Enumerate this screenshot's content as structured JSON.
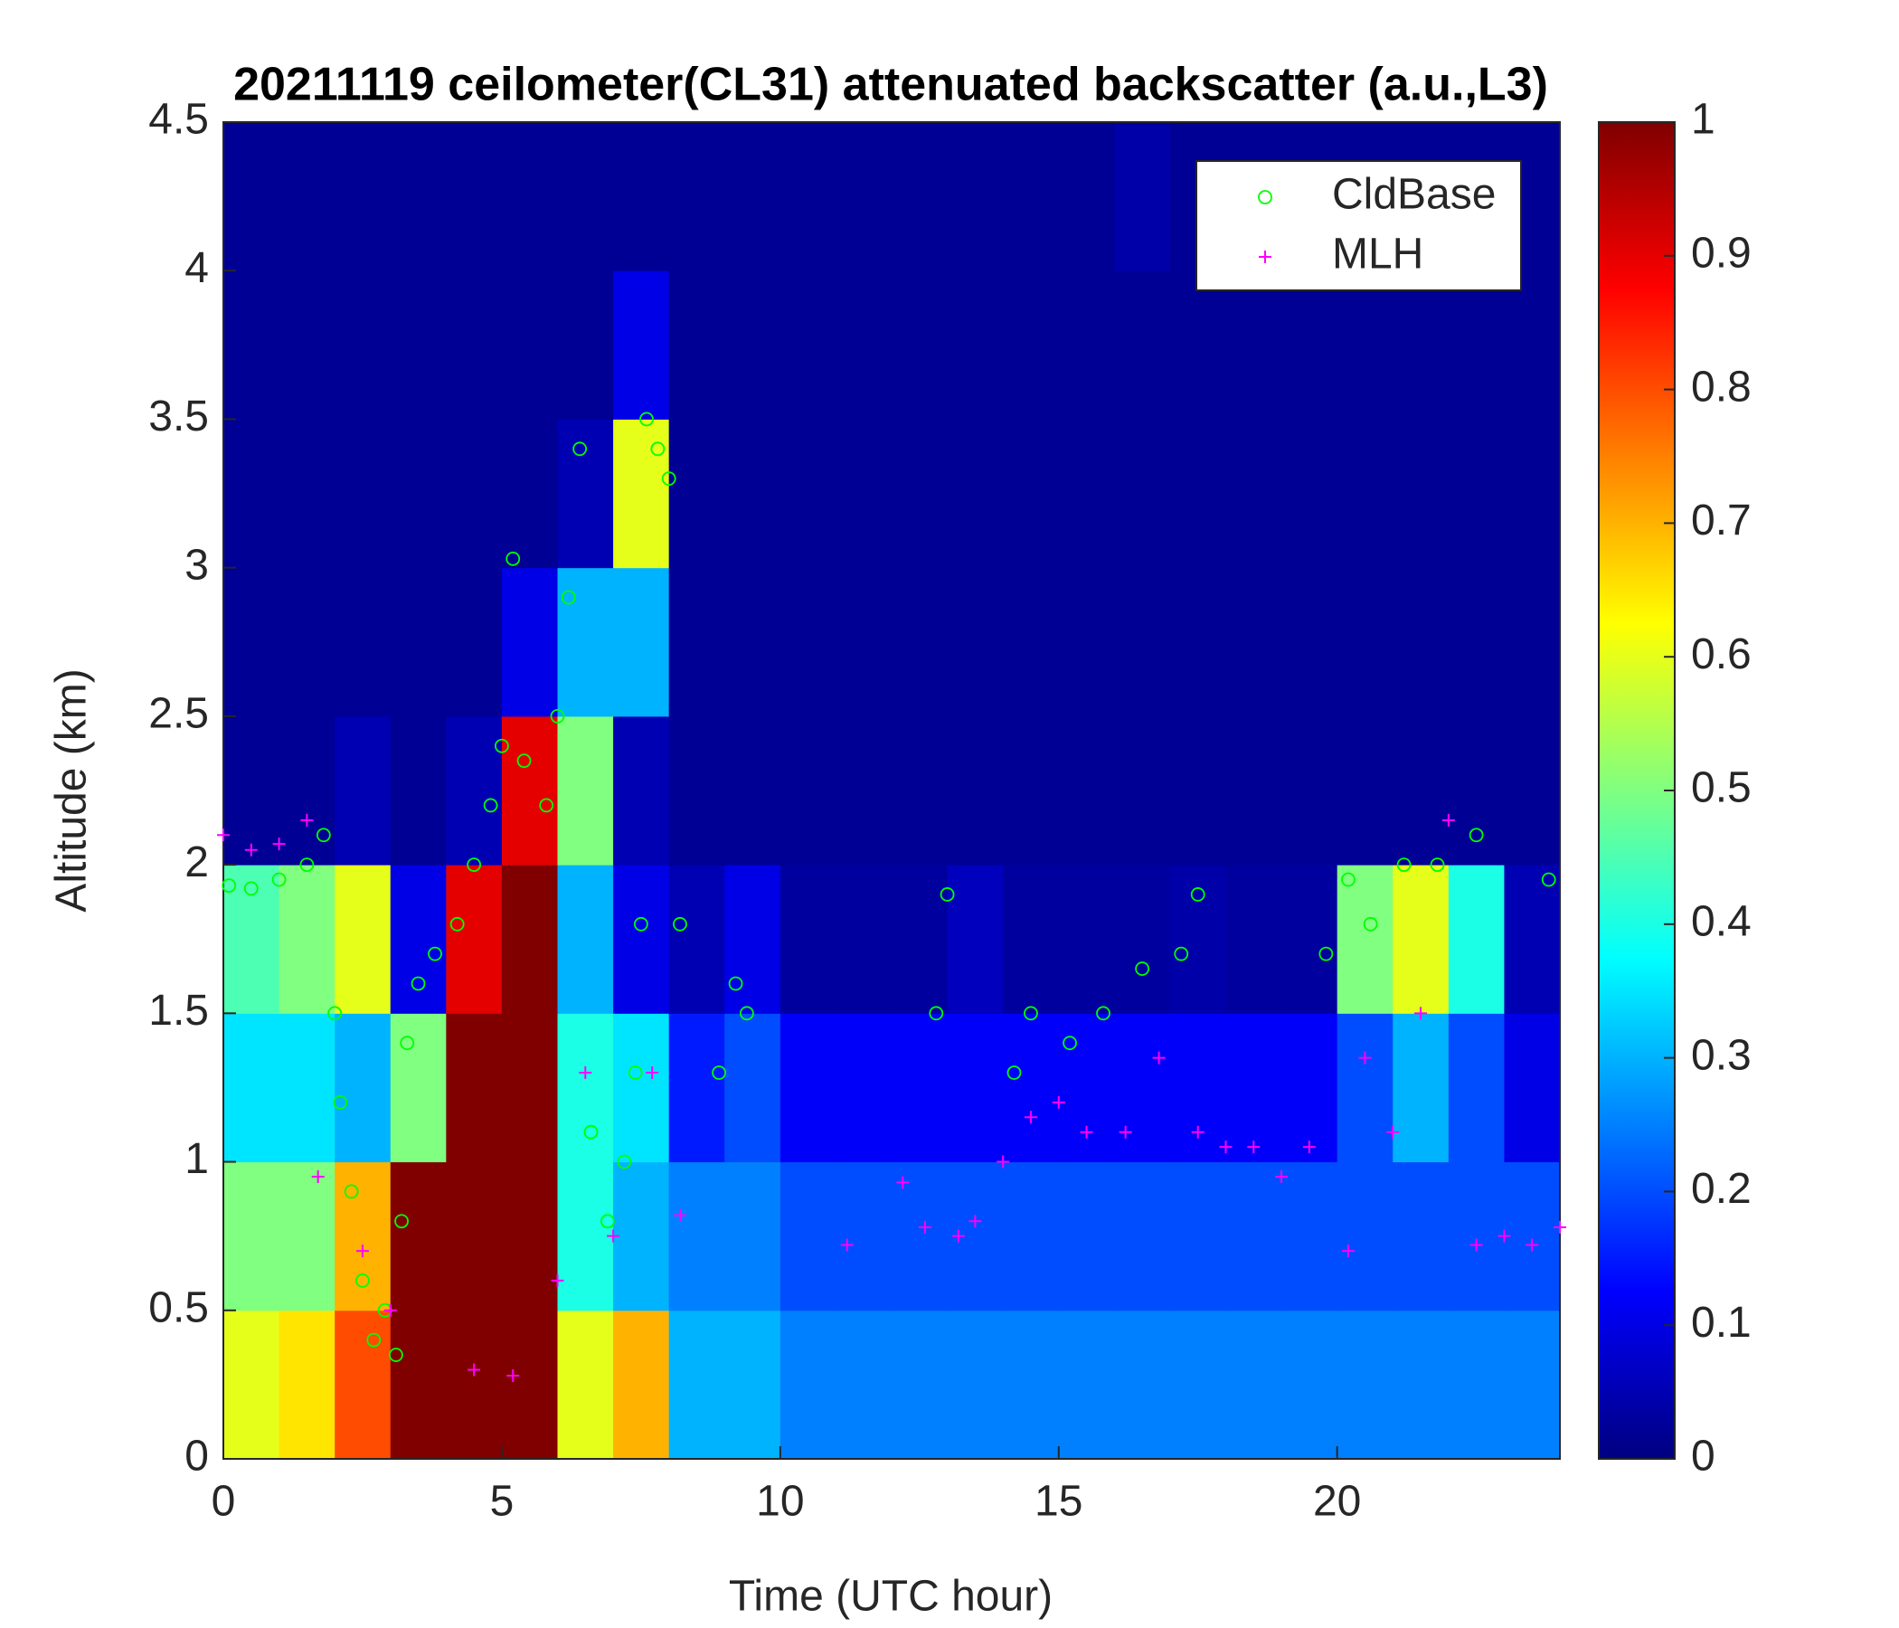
{
  "chart_data": {
    "type": "heatmap",
    "title": "20211119 ceilometer(CL31) attenuated backscatter (a.u.,L3)",
    "xlabel": "Time (UTC hour)",
    "ylabel": "Altitude (km)",
    "xlim": [
      0,
      24
    ],
    "ylim": [
      0,
      4.5
    ],
    "xticks": [
      0,
      5,
      10,
      15,
      20
    ],
    "yticks": [
      0,
      0.5,
      1,
      1.5,
      2,
      2.5,
      3,
      3.5,
      4,
      4.5
    ],
    "colormap": "jet",
    "clim": [
      0,
      1
    ],
    "cticks": [
      0,
      0.1,
      0.2,
      0.3,
      0.4,
      0.5,
      0.6,
      0.7,
      0.8,
      0.9,
      1
    ],
    "x_edges": [
      0,
      1,
      2,
      3,
      4,
      5,
      6,
      7,
      8,
      9,
      10,
      11,
      12,
      13,
      14,
      15,
      16,
      17,
      18,
      19,
      20,
      21,
      22,
      23,
      24
    ],
    "y_edges": [
      0,
      0.5,
      1,
      1.5,
      2,
      2.5,
      3,
      3.5,
      4,
      4.5
    ],
    "z": [
      [
        0.6,
        0.65,
        0.8,
        1,
        1,
        1,
        0.6,
        0.7,
        0.3,
        0.3,
        0.25,
        0.25,
        0.25,
        0.25,
        0.25,
        0.25,
        0.25,
        0.25,
        0.25,
        0.25,
        0.25,
        0.25,
        0.25,
        0.25
      ],
      [
        0.5,
        0.5,
        0.7,
        1,
        1,
        1,
        0.4,
        0.3,
        0.25,
        0.25,
        0.2,
        0.2,
        0.2,
        0.2,
        0.2,
        0.2,
        0.2,
        0.2,
        0.2,
        0.2,
        0.2,
        0.2,
        0.2,
        0.2
      ],
      [
        0.35,
        0.35,
        0.3,
        0.5,
        1,
        1,
        0.4,
        0.35,
        0.15,
        0.2,
        0.12,
        0.12,
        0.12,
        0.12,
        0.12,
        0.12,
        0.12,
        0.12,
        0.12,
        0.12,
        0.2,
        0.3,
        0.2,
        0.1
      ],
      [
        0.45,
        0.5,
        0.6,
        0.1,
        0.9,
        1,
        0.3,
        0.1,
        0.05,
        0.1,
        0.03,
        0.03,
        0.03,
        0.06,
        0.03,
        0.03,
        0.03,
        0.04,
        0.03,
        0.03,
        0.5,
        0.6,
        0.4,
        0.05
      ],
      [
        0.02,
        0.02,
        0.05,
        0.02,
        0.05,
        0.9,
        0.5,
        0.05,
        0.02,
        0.02,
        0.02,
        0.02,
        0.02,
        0.02,
        0.02,
        0.02,
        0.02,
        0.02,
        0.02,
        0.02,
        0.02,
        0.02,
        0.02,
        0.02
      ],
      [
        0.02,
        0.02,
        0.02,
        0.02,
        0.02,
        0.1,
        0.3,
        0.3,
        0.02,
        0.02,
        0.02,
        0.02,
        0.02,
        0.02,
        0.02,
        0.02,
        0.02,
        0.02,
        0.02,
        0.02,
        0.02,
        0.02,
        0.02,
        0.02
      ],
      [
        0.02,
        0.02,
        0.02,
        0.02,
        0.02,
        0.02,
        0.05,
        0.6,
        0.02,
        0.02,
        0.02,
        0.02,
        0.02,
        0.02,
        0.02,
        0.02,
        0.02,
        0.02,
        0.02,
        0.02,
        0.02,
        0.02,
        0.02,
        0.02
      ],
      [
        0.02,
        0.02,
        0.02,
        0.02,
        0.02,
        0.02,
        0.02,
        0.1,
        0.02,
        0.02,
        0.02,
        0.02,
        0.02,
        0.02,
        0.02,
        0.02,
        0.02,
        0.02,
        0.02,
        0.02,
        0.02,
        0.02,
        0.02,
        0.02
      ],
      [
        0.02,
        0.02,
        0.02,
        0.02,
        0.02,
        0.02,
        0.02,
        0.02,
        0.02,
        0.02,
        0.02,
        0.02,
        0.02,
        0.02,
        0.02,
        0.02,
        0.04,
        0.02,
        0.02,
        0.02,
        0.02,
        0.02,
        0.02,
        0.02
      ]
    ],
    "legend": "upper right",
    "series": [
      {
        "name": "CldBase",
        "color": "#00ff00",
        "marker": "o",
        "x": [
          0.1,
          0.5,
          1,
          1.5,
          1.8,
          2.0,
          2.1,
          2.3,
          2.5,
          2.7,
          2.9,
          3.1,
          3.2,
          3.3,
          3.5,
          3.8,
          4.2,
          4.5,
          4.8,
          5.0,
          5.2,
          5.4,
          5.8,
          6.0,
          6.2,
          6.4,
          6.6,
          6.9,
          7.2,
          7.4,
          7.5,
          7.6,
          7.8,
          8.0,
          8.2,
          8.9,
          9.2,
          9.4,
          12.8,
          13.0,
          14.2,
          14.5,
          15.2,
          15.8,
          16.5,
          17.2,
          17.5,
          19.8,
          20.2,
          20.6,
          21.2,
          21.8,
          22.5,
          23.8
        ],
        "values": [
          1.93,
          1.92,
          1.95,
          2.0,
          2.1,
          1.5,
          1.2,
          0.9,
          0.6,
          0.4,
          0.5,
          0.35,
          0.8,
          1.4,
          1.6,
          1.7,
          1.8,
          2.0,
          2.2,
          2.4,
          3.03,
          2.35,
          2.2,
          2.5,
          2.9,
          3.4,
          1.1,
          0.8,
          1.0,
          1.3,
          1.8,
          3.5,
          3.4,
          3.3,
          1.8,
          1.3,
          1.6,
          1.5,
          1.5,
          1.9,
          1.3,
          1.5,
          1.4,
          1.5,
          1.65,
          1.7,
          1.9,
          1.7,
          1.95,
          1.8,
          2.0,
          2.0,
          2.1,
          1.95
        ]
      },
      {
        "name": "MLH",
        "color": "#ff00ff",
        "marker": "+",
        "x": [
          0,
          0.5,
          1,
          1.5,
          1.7,
          2.5,
          3.0,
          4.5,
          5.2,
          6.0,
          6.5,
          7.0,
          7.7,
          8.2,
          11.2,
          12.2,
          12.6,
          13.2,
          13.5,
          14.0,
          14.5,
          15.0,
          15.5,
          16.2,
          16.8,
          17.5,
          18.0,
          18.5,
          19.0,
          19.5,
          20.2,
          20.5,
          21.0,
          21.5,
          22.0,
          22.5,
          23.0,
          23.5,
          24
        ],
        "values": [
          2.1,
          2.05,
          2.07,
          2.15,
          0.95,
          0.7,
          0.5,
          0.3,
          0.28,
          0.6,
          1.3,
          0.75,
          1.3,
          0.82,
          0.72,
          0.93,
          0.78,
          0.75,
          0.8,
          1.0,
          1.15,
          1.2,
          1.1,
          1.1,
          1.35,
          1.1,
          1.05,
          1.05,
          0.95,
          1.05,
          0.7,
          1.35,
          1.1,
          1.5,
          2.15,
          0.72,
          0.75,
          0.72,
          0.78
        ]
      }
    ]
  }
}
